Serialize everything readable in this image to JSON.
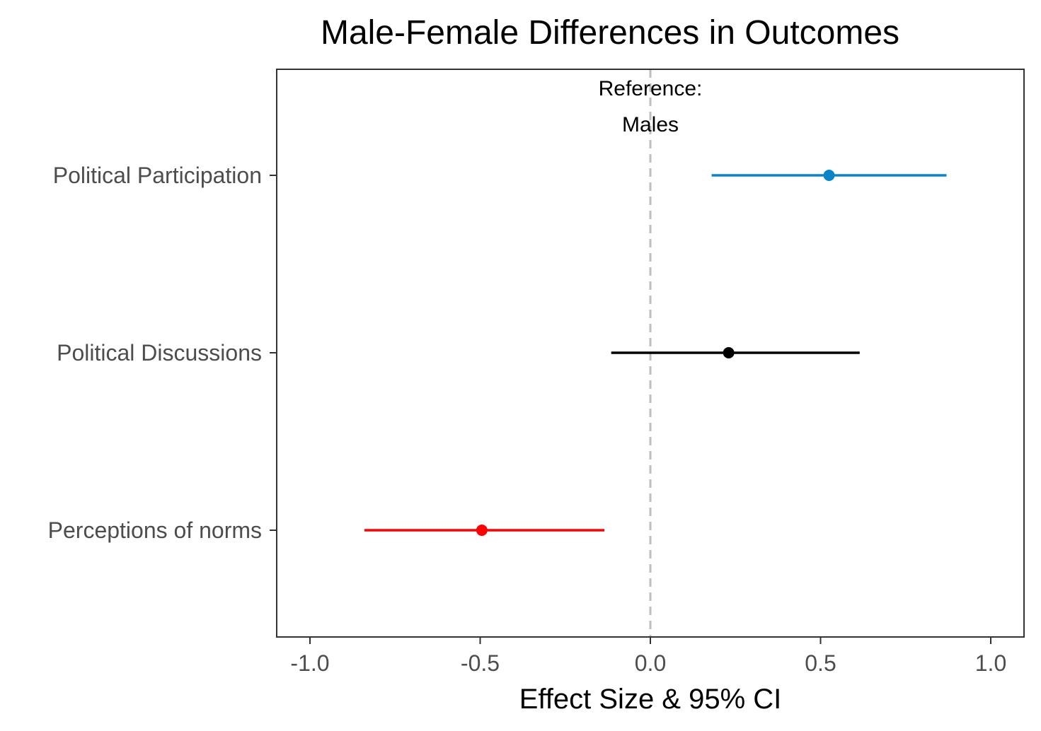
{
  "chart_data": {
    "type": "scatter",
    "subtype": "coefficient-plot",
    "title": "Male-Female Differences in Outcomes",
    "xlabel": "Effect Size & 95% CI",
    "ylabel": "",
    "xlim": [
      -1.07,
      1.1
    ],
    "xticks": [
      -1.0,
      -0.5,
      0.0,
      0.5,
      1.0
    ],
    "xtick_labels": [
      "-1.0",
      "-0.5",
      "0.0",
      "0.5",
      "1.0"
    ],
    "grid": false,
    "legend": "none",
    "reference_line": {
      "x": 0.0,
      "style": "dashed",
      "color": "#bebebe",
      "label_lines": [
        "Reference:",
        "Males"
      ]
    },
    "categories": [
      "Political Participation",
      "Political Discussions",
      "Perceptions of norms"
    ],
    "points": [
      {
        "category": "Political Participation",
        "estimate": 0.525,
        "ci_low": 0.18,
        "ci_high": 0.87,
        "color": "#0a84c8"
      },
      {
        "category": "Political Discussions",
        "estimate": 0.23,
        "ci_low": -0.115,
        "ci_high": 0.615,
        "color": "#000000"
      },
      {
        "category": "Perceptions of norms",
        "estimate": -0.495,
        "ci_low": -0.84,
        "ci_high": -0.135,
        "color": "#ff0000"
      }
    ]
  }
}
